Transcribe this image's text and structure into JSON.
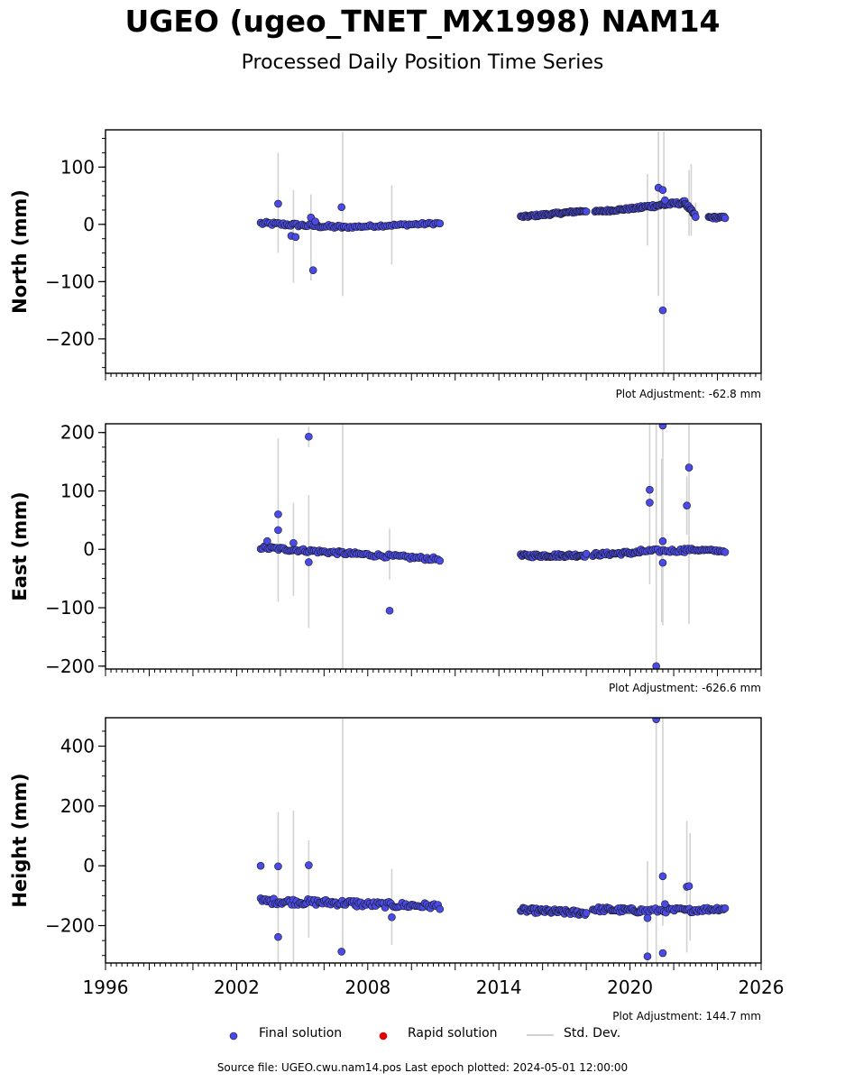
{
  "title": "UGEO (ugeo_TNET_MX1998) NAM14",
  "subtitle": "Processed Daily Position Time Series",
  "legend": {
    "final": "Final solution",
    "rapid": "Rapid solution",
    "stddev": "Std. Dev."
  },
  "source_note": "Source file: UGEO.cwu.nam14.pos  Last epoch plotted: 2024-05-01 12:00:00",
  "colors": {
    "final": "#4a4ae8",
    "final_edge": "#1a1a1a",
    "rapid": "#e00000",
    "stddev": "#d2d2d2"
  },
  "chart_data": [
    {
      "type": "scatter",
      "ylabel": "North (mm)",
      "xlim": [
        1996,
        2026
      ],
      "ylim": [
        -260,
        165
      ],
      "yticks": [
        100,
        0,
        -100,
        -200
      ],
      "ytick_labels": [
        "100",
        "0",
        "−100",
        "−200"
      ],
      "xticks": [
        1996,
        2002,
        2008,
        2014,
        2020,
        2026
      ],
      "xtick_labels": [
        "1996",
        "2002",
        "2008",
        "2014",
        "2020",
        "2026"
      ],
      "show_xtick_labels": false,
      "adjustment": "Plot Adjustment: -62.8 mm",
      "series": [
        {
          "name": "Final solution",
          "segments": [
            {
              "x0": 2003.1,
              "x1": 2006.9,
              "y0": 2,
              "y1": -5,
              "n": 45,
              "jitter": 3
            },
            {
              "x0": 2006.9,
              "x1": 2011.3,
              "y0": -5,
              "y1": 2,
              "n": 45,
              "jitter": 2
            },
            {
              "x0": 2015.0,
              "x1": 2018.0,
              "y0": 13,
              "y1": 24,
              "n": 55,
              "jitter": 2
            },
            {
              "x0": 2018.4,
              "x1": 2020.5,
              "y0": 22,
              "y1": 29,
              "n": 38,
              "jitter": 2
            },
            {
              "x0": 2020.5,
              "x1": 2022.5,
              "y0": 30,
              "y1": 38,
              "n": 34,
              "jitter": 3
            },
            {
              "x0": 2022.5,
              "x1": 2023.0,
              "y0": 38,
              "y1": 14,
              "n": 14,
              "jitter": 3
            },
            {
              "x0": 2023.6,
              "x1": 2024.35,
              "y0": 12,
              "y1": 12,
              "n": 16,
              "jitter": 2
            }
          ],
          "points": [
            [
              2003.9,
              36
            ],
            [
              2004.5,
              -20
            ],
            [
              2004.7,
              -22
            ],
            [
              2005.4,
              12
            ],
            [
              2005.5,
              -80
            ],
            [
              2005.6,
              5
            ],
            [
              2006.8,
              30
            ],
            [
              2021.3,
              64
            ],
            [
              2021.5,
              60
            ],
            [
              2021.5,
              -150
            ],
            [
              2021.6,
              42
            ]
          ]
        }
      ],
      "error_bars": [
        [
          2003.9,
          125,
          -50
        ],
        [
          2004.6,
          60,
          -102
        ],
        [
          2005.4,
          52,
          -98
        ],
        [
          2006.85,
          162,
          -125
        ],
        [
          2009.1,
          68,
          -70
        ],
        [
          2020.8,
          88,
          -37
        ],
        [
          2021.3,
          162,
          -125
        ],
        [
          2021.55,
          162,
          -260
        ],
        [
          2022.7,
          95,
          -20
        ],
        [
          2022.8,
          105,
          -20
        ],
        [
          2023.0,
          38,
          5
        ]
      ]
    },
    {
      "type": "scatter",
      "ylabel": "East (mm)",
      "xlim": [
        1996,
        2026
      ],
      "ylim": [
        -205,
        215
      ],
      "yticks": [
        200,
        100,
        0,
        -100,
        -200
      ],
      "ytick_labels": [
        "200",
        "100",
        "0",
        "−100",
        "−200"
      ],
      "xticks": [
        1996,
        2002,
        2008,
        2014,
        2020,
        2026
      ],
      "xtick_labels": [
        "1996",
        "2002",
        "2008",
        "2014",
        "2020",
        "2026"
      ],
      "show_xtick_labels": false,
      "adjustment": "Plot Adjustment: -626.6 mm",
      "series": [
        {
          "name": "Final solution",
          "segments": [
            {
              "x0": 2003.1,
              "x1": 2007.5,
              "y0": 3,
              "y1": -8,
              "n": 55,
              "jitter": 3
            },
            {
              "x0": 2007.5,
              "x1": 2011.3,
              "y0": -8,
              "y1": -17,
              "n": 40,
              "jitter": 3
            },
            {
              "x0": 2015.0,
              "x1": 2018.0,
              "y0": -11,
              "y1": -10,
              "n": 55,
              "jitter": 3
            },
            {
              "x0": 2018.3,
              "x1": 2020.5,
              "y0": -9,
              "y1": -5,
              "n": 35,
              "jitter": 3
            },
            {
              "x0": 2020.5,
              "x1": 2022.5,
              "y0": -3,
              "y1": -2,
              "n": 22,
              "jitter": 3
            },
            {
              "x0": 2022.5,
              "x1": 2024.35,
              "y0": 0,
              "y1": -3,
              "n": 24,
              "jitter": 2
            }
          ],
          "points": [
            [
              2003.4,
              14
            ],
            [
              2003.9,
              60
            ],
            [
              2003.9,
              33
            ],
            [
              2004.6,
              11
            ],
            [
              2005.3,
              193
            ],
            [
              2005.3,
              -22
            ],
            [
              2009.0,
              -105
            ],
            [
              2020.9,
              102
            ],
            [
              2020.9,
              80
            ],
            [
              2021.2,
              -200
            ],
            [
              2021.5,
              212
            ],
            [
              2021.5,
              14
            ],
            [
              2021.5,
              -23
            ],
            [
              2022.7,
              140
            ],
            [
              2022.6,
              75
            ]
          ]
        }
      ],
      "error_bars": [
        [
          2003.9,
          190,
          -90
        ],
        [
          2004.6,
          80,
          -80
        ],
        [
          2005.3,
          93,
          -135
        ],
        [
          2005.3,
          210,
          175
        ],
        [
          2006.85,
          215,
          -205
        ],
        [
          2009.0,
          35,
          -52
        ],
        [
          2020.9,
          215,
          -60
        ],
        [
          2021.2,
          215,
          -205
        ],
        [
          2021.5,
          215,
          -130
        ],
        [
          2021.45,
          155,
          -125
        ],
        [
          2022.7,
          215,
          -128
        ],
        [
          2022.6,
          125,
          25
        ]
      ]
    },
    {
      "type": "scatter",
      "ylabel": "Height (mm)",
      "xlim": [
        1996,
        2026
      ],
      "ylim": [
        -325,
        495
      ],
      "yticks": [
        400,
        200,
        0,
        -200
      ],
      "ytick_labels": [
        "400",
        "200",
        "0",
        "−200"
      ],
      "xticks": [
        1996,
        2002,
        2008,
        2014,
        2020,
        2026
      ],
      "xtick_labels": [
        "1996",
        "2002",
        "2008",
        "2014",
        "2020",
        "2026"
      ],
      "show_xtick_labels": true,
      "adjustment": "Plot Adjustment: 144.7 mm",
      "series": [
        {
          "name": "Final solution",
          "segments": [
            {
              "x0": 2003.1,
              "x1": 2007.5,
              "y0": -118,
              "y1": -125,
              "n": 60,
              "jitter": 10
            },
            {
              "x0": 2007.5,
              "x1": 2011.3,
              "y0": -128,
              "y1": -135,
              "n": 45,
              "jitter": 10
            },
            {
              "x0": 2015.0,
              "x1": 2018.0,
              "y0": -148,
              "y1": -158,
              "n": 55,
              "jitter": 8
            },
            {
              "x0": 2018.3,
              "x1": 2020.5,
              "y0": -145,
              "y1": -150,
              "n": 35,
              "jitter": 8
            },
            {
              "x0": 2020.5,
              "x1": 2022.5,
              "y0": -150,
              "y1": -148,
              "n": 22,
              "jitter": 8
            },
            {
              "x0": 2022.5,
              "x1": 2024.35,
              "y0": -150,
              "y1": -142,
              "n": 26,
              "jitter": 7
            }
          ],
          "points": [
            [
              2003.1,
              0
            ],
            [
              2003.9,
              -2
            ],
            [
              2003.9,
              -238
            ],
            [
              2005.3,
              2
            ],
            [
              2006.8,
              -287
            ],
            [
              2009.1,
              -172
            ],
            [
              2020.8,
              -175
            ],
            [
              2020.8,
              -303
            ],
            [
              2021.2,
              490
            ],
            [
              2021.5,
              -35
            ],
            [
              2021.5,
              -292
            ],
            [
              2021.6,
              -128
            ],
            [
              2022.6,
              -70
            ],
            [
              2022.7,
              -68
            ]
          ]
        }
      ],
      "error_bars": [
        [
          2003.9,
          180,
          -325
        ],
        [
          2004.6,
          185,
          -325
        ],
        [
          2005.3,
          85,
          -240
        ],
        [
          2006.85,
          495,
          -300
        ],
        [
          2009.1,
          -10,
          -265
        ],
        [
          2020.8,
          15,
          -325
        ],
        [
          2021.2,
          495,
          -325
        ],
        [
          2021.5,
          495,
          -200
        ],
        [
          2022.6,
          150,
          -290
        ],
        [
          2022.75,
          110,
          -250
        ]
      ]
    }
  ]
}
